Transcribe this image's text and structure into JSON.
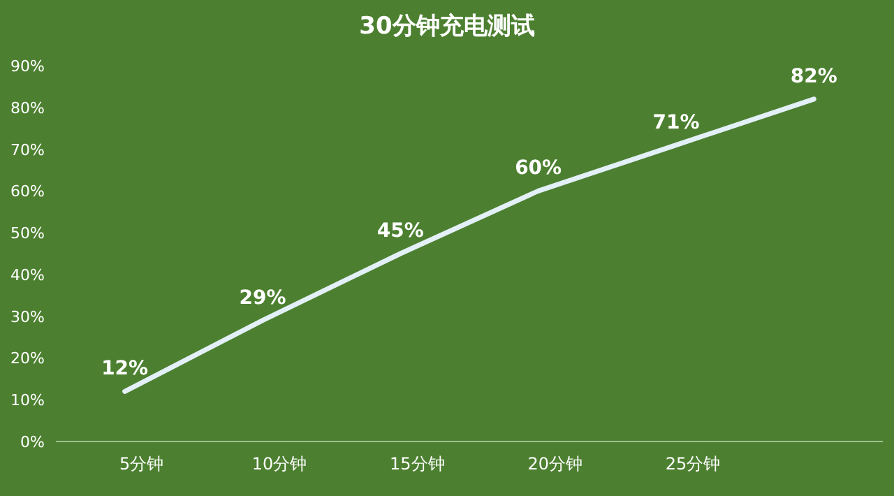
{
  "chart_data": {
    "type": "line",
    "title": "30分钟充电测试",
    "categories": [
      "5分钟",
      "10分钟",
      "15分钟",
      "20分钟",
      "25分钟",
      null
    ],
    "values": [
      12,
      29,
      45,
      60,
      71,
      82
    ],
    "value_labels": [
      "12%",
      "29%",
      "45%",
      "60%",
      "71%",
      "82%"
    ],
    "color": "#e4f0f8",
    "ylim": [
      0,
      90
    ],
    "yticks": [
      {
        "value": 0,
        "label": "0%"
      },
      {
        "value": 10,
        "label": "10%"
      },
      {
        "value": 20,
        "label": "20%"
      },
      {
        "value": 30,
        "label": "30%"
      },
      {
        "value": 40,
        "label": "40%"
      },
      {
        "value": 50,
        "label": "50%"
      },
      {
        "value": 60,
        "label": "60%"
      },
      {
        "value": 70,
        "label": "70%"
      },
      {
        "value": 80,
        "label": "80%"
      },
      {
        "value": 90,
        "label": "90%"
      }
    ],
    "grid": false,
    "marker": "none",
    "line_style": "solid"
  }
}
